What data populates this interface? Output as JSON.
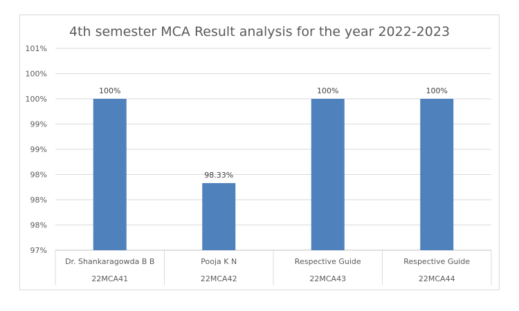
{
  "chart_data": {
    "type": "bar",
    "title": "4th semester MCA Result analysis for the year 2022-2023",
    "xlabel": "",
    "ylabel": "",
    "y_ticks": [
      "97%",
      "98%",
      "98%",
      "98%",
      "99%",
      "99%",
      "100%",
      "100%",
      "101%"
    ],
    "ylim": [
      97.0,
      101.0
    ],
    "categories": [
      {
        "name": "Dr. Shankaragowda B B",
        "code": "22MCA41"
      },
      {
        "name": "Pooja K N",
        "code": "22MCA42"
      },
      {
        "name": "Respective Guide",
        "code": "22MCA43"
      },
      {
        "name": "Respective Guide",
        "code": "22MCA44"
      }
    ],
    "values": [
      100,
      98.33,
      100,
      100
    ],
    "data_labels": [
      "100%",
      "98.33%",
      "100%",
      "100%"
    ],
    "legend": false,
    "grid": true,
    "bar_color": "#4f81bd"
  }
}
